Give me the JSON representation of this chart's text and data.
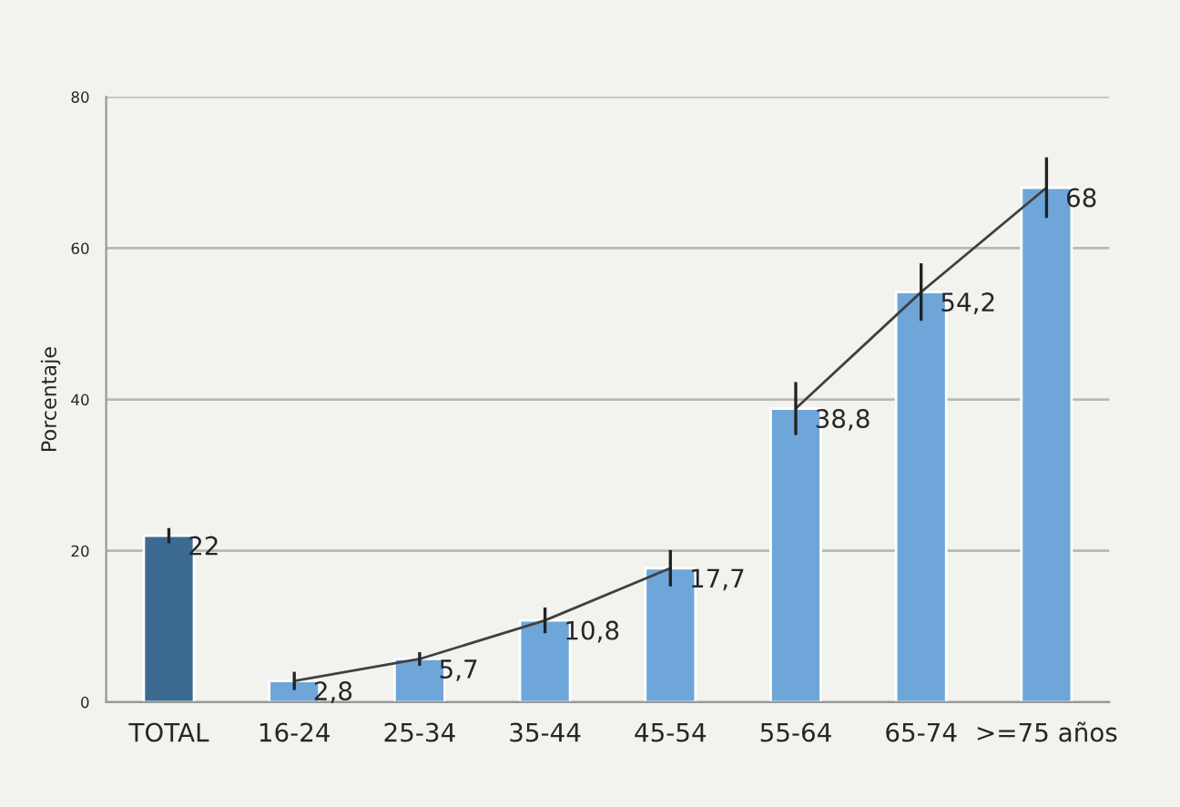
{
  "chart_data": {
    "type": "bar",
    "ylabel": "Porcentaje",
    "categories": [
      "TOTAL",
      "16-24",
      "25-34",
      "35-44",
      "45-54",
      "55-64",
      "65-74",
      ">=75 años"
    ],
    "series": [
      {
        "colors": [
          "#3d6a93",
          "#6fa6d9",
          "#6fa6d9",
          "#6fa6d9",
          "#6fa6d9",
          "#6fa6d9",
          "#6fa6d9",
          "#6fa6d9"
        ],
        "values": [
          22,
          2.8,
          5.7,
          10.8,
          17.7,
          38.8,
          54.2,
          68
        ],
        "errors": [
          1,
          1.2,
          0.9,
          1.7,
          2.4,
          3.5,
          3.8,
          4
        ],
        "value_labels": [
          "22",
          "2,8",
          "5,7",
          "10,8",
          "17,7",
          "38,8",
          "54,2",
          "68"
        ]
      },
      {
        "type": "line",
        "color": "#404040",
        "values": [
          null,
          2.8,
          5.7,
          10.8,
          17.7,
          null,
          null,
          null
        ]
      },
      {
        "type": "line",
        "color": "#404040",
        "values": [
          null,
          null,
          null,
          null,
          null,
          38.8,
          54.2,
          68
        ]
      }
    ],
    "ylim": [
      0,
      80
    ],
    "yticks": [
      0,
      20,
      40,
      60,
      80
    ],
    "grid": "y",
    "marker": "none",
    "line_style": "solid"
  }
}
